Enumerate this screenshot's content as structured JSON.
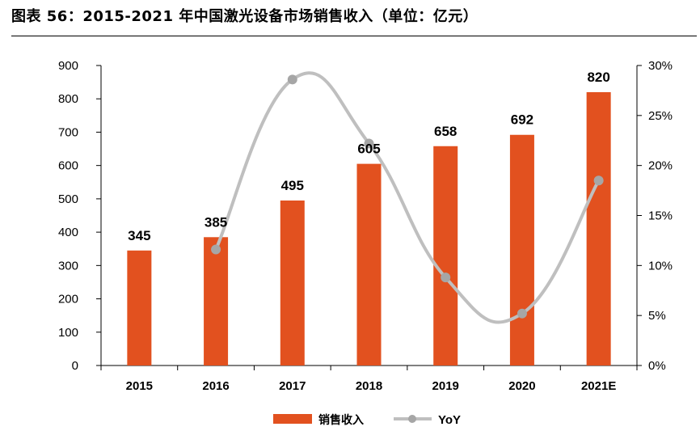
{
  "figure": {
    "title": "图表 56：2015-2021 年中国激光设备市场销售收入（单位：亿元）"
  },
  "chart_data": {
    "type": "bar+line",
    "categories": [
      "2015",
      "2016",
      "2017",
      "2018",
      "2019",
      "2020",
      "2021E"
    ],
    "series": [
      {
        "name": "销售收入",
        "type": "bar",
        "axis": "left",
        "color": "#e2511f",
        "values": [
          345,
          385,
          495,
          605,
          658,
          692,
          820
        ],
        "labels": [
          "345",
          "385",
          "495",
          "605",
          "658",
          "692",
          "820"
        ]
      },
      {
        "name": "YoY",
        "type": "line",
        "smooth": true,
        "axis": "right",
        "color": "#bfbfbf",
        "values": [
          null,
          11.6,
          28.6,
          22.2,
          8.8,
          5.2,
          18.5
        ]
      }
    ],
    "y_left": {
      "min": 0,
      "max": 900,
      "step": 100,
      "ticks": [
        "0",
        "100",
        "200",
        "300",
        "400",
        "500",
        "600",
        "700",
        "800",
        "900"
      ]
    },
    "y_right": {
      "min": 0,
      "max": 30,
      "step": 5,
      "ticks": [
        "0%",
        "5%",
        "10%",
        "15%",
        "20%",
        "25%",
        "30%"
      ]
    },
    "grid": false,
    "legend": {
      "position": "bottom",
      "items": [
        {
          "label": "销售收入",
          "series": "销售收入"
        },
        {
          "label": "YoY",
          "series": "YoY"
        }
      ]
    }
  }
}
